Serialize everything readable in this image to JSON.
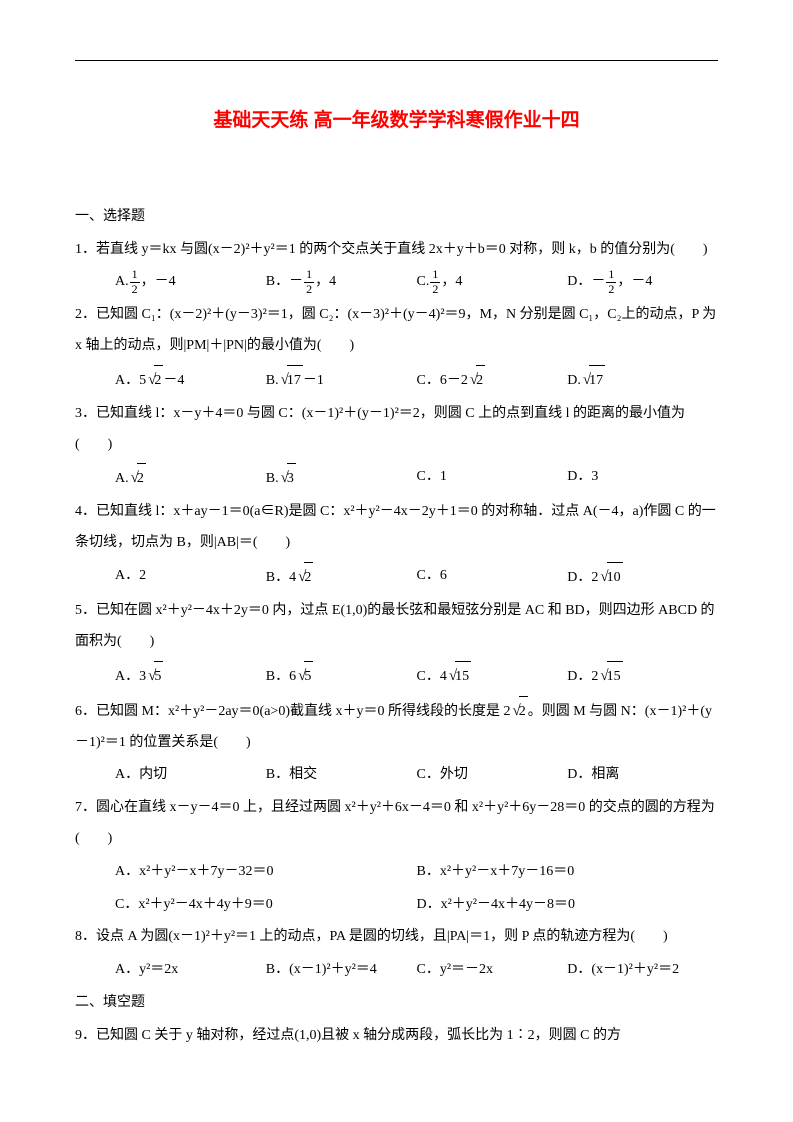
{
  "title": "基础天天练 高一年级数学学科寒假作业十四",
  "section1": "一、选择题",
  "q1": "1．若直线 y＝kx 与圆(x－2)²＋y²＝1 的两个交点关于直线 2x＋y＋b＝0 对称，则 k，b 的值分别为(　　)",
  "q1a": "A.",
  "q1a2": "，－4",
  "q1b": "B．－",
  "q1b2": "，4",
  "q1c": "C.",
  "q1c2": "，4",
  "q1d": "D．－",
  "q1d2": "，－4",
  "q2": "2．已知圆 C₁：(x－2)²＋(y－3)²＝1，圆 C₂：(x－3)²＋(y－4)²＝9，M，N 分别是圆 C₁，C₂上的动点，P 为 x 轴上的动点，则|PM|＋|PN|的最小值为(　　)",
  "q2a_pre": "A．5",
  "q2a_rad": "2",
  "q2a_post": "－4",
  "q2b_pre": "B.",
  "q2b_rad": "17",
  "q2b_post": "－1",
  "q2c_pre": "C．6－2",
  "q2c_rad": "2",
  "q2d_pre": "D.",
  "q2d_rad": "17",
  "q3": "3．已知直线 l：x－y＋4＝0 与圆 C：(x－1)²＋(y－1)²＝2，则圆 C 上的点到直线 l 的距离的最小值为(　　)",
  "q3a_pre": "A.",
  "q3a_rad": "2",
  "q3b_pre": "B.",
  "q3b_rad": "3",
  "q3c": "C．1",
  "q3d": "D．3",
  "q4": "4．已知直线 l：x＋ay－1＝0(a∈R)是圆 C：x²＋y²－4x－2y＋1＝0 的对称轴．过点 A(－4，a)作圆 C 的一条切线，切点为 B，则|AB|＝(　　)",
  "q4a": "A．2",
  "q4b_pre": "B．4",
  "q4b_rad": "2",
  "q4c": "C．6",
  "q4d_pre": "D．2",
  "q4d_rad": "10",
  "q5": "5．已知在圆 x²＋y²－4x＋2y＝0 内，过点 E(1,0)的最长弦和最短弦分别是 AC 和 BD，则四边形 ABCD 的面积为(　　)",
  "q5a_pre": "A．3",
  "q5a_rad": "5",
  "q5b_pre": "B．6",
  "q5b_rad": "5",
  "q5c_pre": "C．4",
  "q5c_rad": "15",
  "q5d_pre": "D．2",
  "q5d_rad": "15",
  "q6_pre": "6．已知圆 M：x²＋y²－2ay＝0(a>0)截直线 x＋y＝0 所得线段的长度是 2",
  "q6_rad": "2",
  "q6_post": "。则圆 M 与圆 N：(x－1)²＋(y－1)²＝1 的位置关系是(　　)",
  "q6a": "A．内切",
  "q6b": "B．相交",
  "q6c": "C．外切",
  "q6d": "D．相离",
  "q7": "7．圆心在直线 x－y－4＝0 上，且经过两圆 x²＋y²＋6x－4＝0 和 x²＋y²＋6y－28＝0 的交点的圆的方程为(　　)",
  "q7a": "A．x²＋y²－x＋7y－32＝0",
  "q7b": "B．x²＋y²－x＋7y－16＝0",
  "q7c": "C．x²＋y²－4x＋4y＋9＝0",
  "q7d": "D．x²＋y²－4x＋4y－8＝0",
  "q8": "8．设点 A 为圆(x－1)²＋y²＝1 上的动点，PA 是圆的切线，且|PA|＝1，则 P 点的轨迹方程为(　　)",
  "q8a": "A．y²＝2x",
  "q8b": "B．(x－1)²＋y²＝4",
  "q8c": "C．y²＝－2x",
  "q8d": "D．(x－1)²＋y²＝2",
  "section2": "二、填空题",
  "q9": "9．已知圆 C 关于 y 轴对称，经过点(1,0)且被 x 轴分成两段，弧长比为 1∶2，则圆 C 的方"
}
